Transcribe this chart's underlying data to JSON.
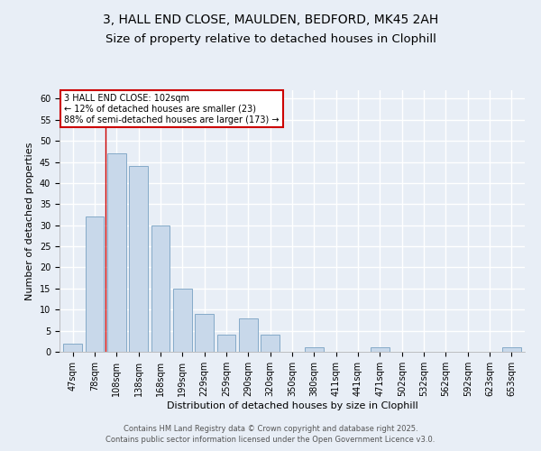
{
  "title_line1": "3, HALL END CLOSE, MAULDEN, BEDFORD, MK45 2AH",
  "title_line2": "Size of property relative to detached houses in Clophill",
  "xlabel": "Distribution of detached houses by size in Clophill",
  "ylabel": "Number of detached properties",
  "categories": [
    "47sqm",
    "78sqm",
    "108sqm",
    "138sqm",
    "168sqm",
    "199sqm",
    "229sqm",
    "259sqm",
    "290sqm",
    "320sqm",
    "350sqm",
    "380sqm",
    "411sqm",
    "441sqm",
    "471sqm",
    "502sqm",
    "532sqm",
    "562sqm",
    "592sqm",
    "623sqm",
    "653sqm"
  ],
  "values": [
    2,
    32,
    47,
    44,
    30,
    15,
    9,
    4,
    8,
    4,
    0,
    1,
    0,
    0,
    1,
    0,
    0,
    0,
    0,
    0,
    1
  ],
  "bar_color": "#c8d8ea",
  "bar_edge_color": "#85aac8",
  "background_color": "#e8eef6",
  "grid_color": "#ffffff",
  "annotation_box_color": "#ffffff",
  "annotation_box_edge": "#cc0000",
  "annotation_text_line1": "3 HALL END CLOSE: 102sqm",
  "annotation_text_line2": "← 12% of detached houses are smaller (23)",
  "annotation_text_line3": "88% of semi-detached houses are larger (173) →",
  "vline_x": 1.5,
  "vline_color": "#cc0000",
  "ylim": [
    0,
    62
  ],
  "yticks": [
    0,
    5,
    10,
    15,
    20,
    25,
    30,
    35,
    40,
    45,
    50,
    55,
    60
  ],
  "footer_line1": "Contains HM Land Registry data © Crown copyright and database right 2025.",
  "footer_line2": "Contains public sector information licensed under the Open Government Licence v3.0.",
  "title1_fontsize": 10,
  "title2_fontsize": 9.5,
  "axis_label_fontsize": 8,
  "tick_fontsize": 7,
  "annotation_fontsize": 7,
  "footer_fontsize": 6
}
